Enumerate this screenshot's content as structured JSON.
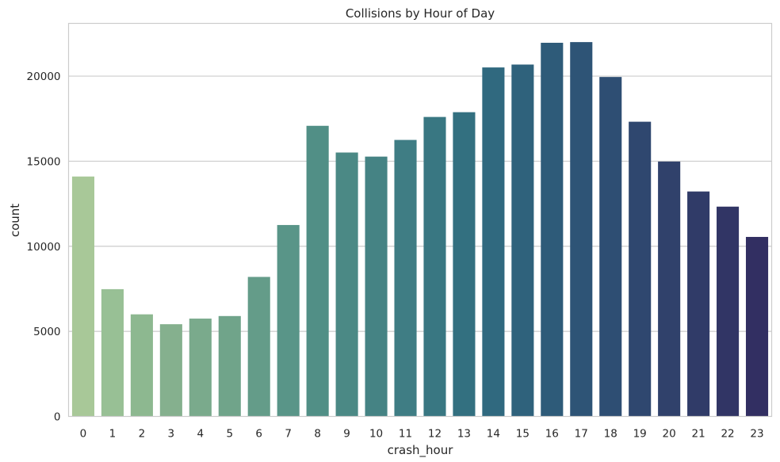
{
  "chart_data": {
    "type": "bar",
    "title": "Collisions by Hour of Day",
    "xlabel": "crash_hour",
    "ylabel": "count",
    "categories": [
      "0",
      "1",
      "2",
      "3",
      "4",
      "5",
      "6",
      "7",
      "8",
      "9",
      "10",
      "11",
      "12",
      "13",
      "14",
      "15",
      "16",
      "17",
      "18",
      "19",
      "20",
      "21",
      "22",
      "23"
    ],
    "values": [
      14100,
      7480,
      6000,
      5420,
      5750,
      5900,
      8200,
      11250,
      17080,
      15510,
      15270,
      16250,
      17600,
      17880,
      20510,
      20680,
      21960,
      22000,
      19950,
      17320,
      14980,
      13220,
      12330,
      10550
    ],
    "ylim": [
      0,
      23100
    ],
    "yticks": [
      0,
      5000,
      10000,
      15000,
      20000
    ],
    "ytick_labels": [
      "0",
      "5000",
      "10000",
      "15000",
      "20000"
    ],
    "grid": "horizontal",
    "palette": [
      "#a8c898",
      "#98c095",
      "#8db890",
      "#85b08e",
      "#7aaa8c",
      "#70a48a",
      "#649c89",
      "#599588",
      "#518f86",
      "#4b8985",
      "#458384",
      "#3f7d84",
      "#397782",
      "#337080",
      "#30697f",
      "#2f627c",
      "#2e5b79",
      "#2e5476",
      "#2e4e73",
      "#2f476f",
      "#30416b",
      "#303b68",
      "#313565",
      "#322f62"
    ]
  }
}
